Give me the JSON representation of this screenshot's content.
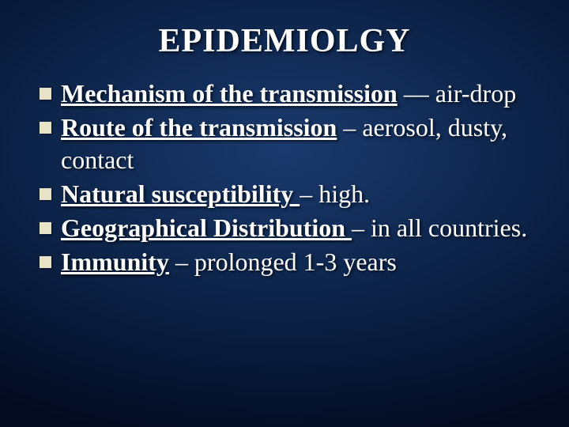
{
  "slide": {
    "background": {
      "gradient_center": "#1a3a6e",
      "gradient_mid": "#0f2850",
      "gradient_outer": "#071736",
      "gradient_edge": "#030b1f"
    },
    "title": "EPIDEMIOLGY",
    "title_fontsize": 42,
    "title_color": "#ffffff",
    "bullet_color": "#e8e2c8",
    "bullet_size": 15,
    "text_color": "#ffffff",
    "text_fontsize": 32,
    "font_family": "Times New Roman",
    "items": [
      {
        "label_bold_underlined": "Mechanism of the transmission",
        "rest": " — air-drop"
      },
      {
        "label_bold_underlined": "Route of the transmission",
        "rest": " – aerosol, dusty, contact"
      },
      {
        "label_bold_underlined": "Natural susceptibility ",
        "rest": " – high."
      },
      {
        "label_bold_underlined": "Geographical Distribution ",
        "rest": " – in all countries."
      },
      {
        "label_bold_underlined": "Immunity",
        "rest": " – prolonged 1-3 years"
      }
    ]
  }
}
